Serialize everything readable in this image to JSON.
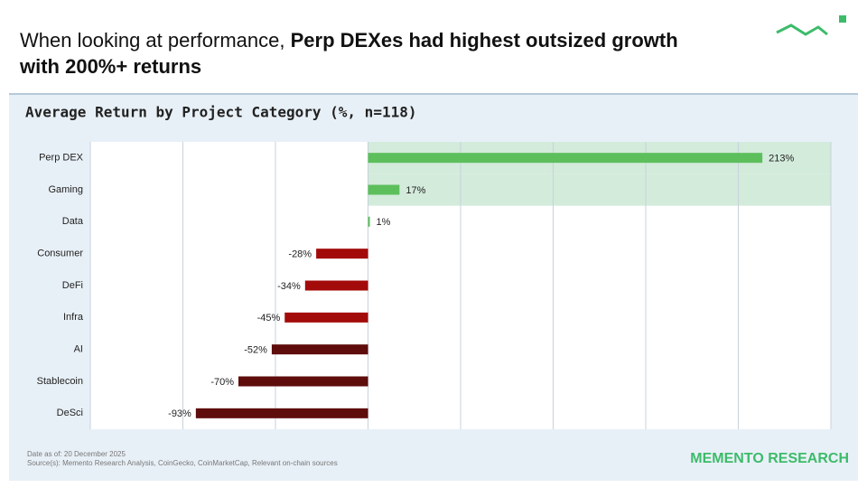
{
  "header": {
    "title_lead": "When looking at performance, ",
    "title_bold_1": "Perp DEXes had highest outsized growth",
    "title_bold_2": "with 200%+ returns"
  },
  "chart_data": {
    "type": "bar",
    "orientation": "horizontal",
    "title": "Average Return by Project Category (%, n=118)",
    "categories": [
      "Perp DEX",
      "Gaming",
      "Data",
      "Consumer",
      "DeFi",
      "Infra",
      "AI",
      "Stablecoin",
      "DeSci"
    ],
    "values": [
      213,
      17,
      1,
      -28,
      -34,
      -45,
      -52,
      -70,
      -93
    ],
    "value_labels": [
      "213%",
      "17%",
      "1%",
      "-28%",
      "-34%",
      "-45%",
      "-52%",
      "-70%",
      "-93%"
    ],
    "colors": [
      "#5cbf5c",
      "#5cbf5c",
      "#5cbf5c",
      "#a30a0a",
      "#a30a0a",
      "#a30a0a",
      "#5e0c0c",
      "#5e0c0c",
      "#5e0c0c"
    ],
    "xlim": [
      -150,
      250
    ],
    "xticks": [
      -150,
      -100,
      -50,
      0,
      50,
      100,
      150,
      200,
      250
    ],
    "grid": true,
    "highlight": [
      0,
      1
    ],
    "highlight_color": "#d3ebdb"
  },
  "footer": {
    "date": "Date as of: 20 December 2025",
    "sources": "Source(s): Memento Research Analysis, CoinGecko, CoinMarketCap, Relevant on-chain sources",
    "brand": "MEMENTO RESEARCH"
  }
}
